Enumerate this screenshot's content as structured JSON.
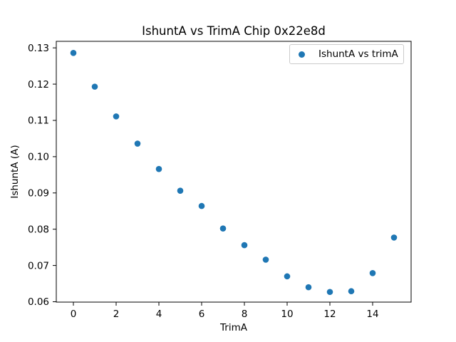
{
  "chart_data": {
    "type": "scatter",
    "title": "IshuntA vs TrimA Chip 0x22e8d",
    "xlabel": "TrimA",
    "ylabel": "IshuntA (A)",
    "x": [
      0,
      1,
      2,
      3,
      4,
      5,
      6,
      7,
      8,
      9,
      10,
      11,
      12,
      13,
      14,
      15
    ],
    "y": [
      0.1286,
      0.1193,
      0.1111,
      0.1036,
      0.0966,
      0.0906,
      0.0864,
      0.0802,
      0.0756,
      0.0716,
      0.067,
      0.064,
      0.0627,
      0.0629,
      0.0679,
      0.0777
    ],
    "xlim": [
      -0.8,
      15.8
    ],
    "ylim": [
      0.0599,
      0.1318
    ],
    "xticks": {
      "values": [
        0,
        2,
        4,
        6,
        8,
        10,
        12,
        14
      ],
      "labels": [
        "0",
        "2",
        "4",
        "6",
        "8",
        "10",
        "12",
        "14"
      ]
    },
    "yticks": {
      "values": [
        0.06,
        0.07,
        0.08,
        0.09,
        0.1,
        0.11,
        0.12,
        0.13
      ],
      "labels": [
        "0.06",
        "0.07",
        "0.08",
        "0.09",
        "0.10",
        "0.11",
        "0.12",
        "0.13"
      ]
    },
    "legend": {
      "position": "upper right",
      "entries": [
        "IshuntA vs trimA"
      ]
    },
    "grid": false,
    "marker_color": "#1f77b4",
    "axis_color": "#000000",
    "legend_border_color": "#cccccc",
    "background_color": "#ffffff"
  }
}
